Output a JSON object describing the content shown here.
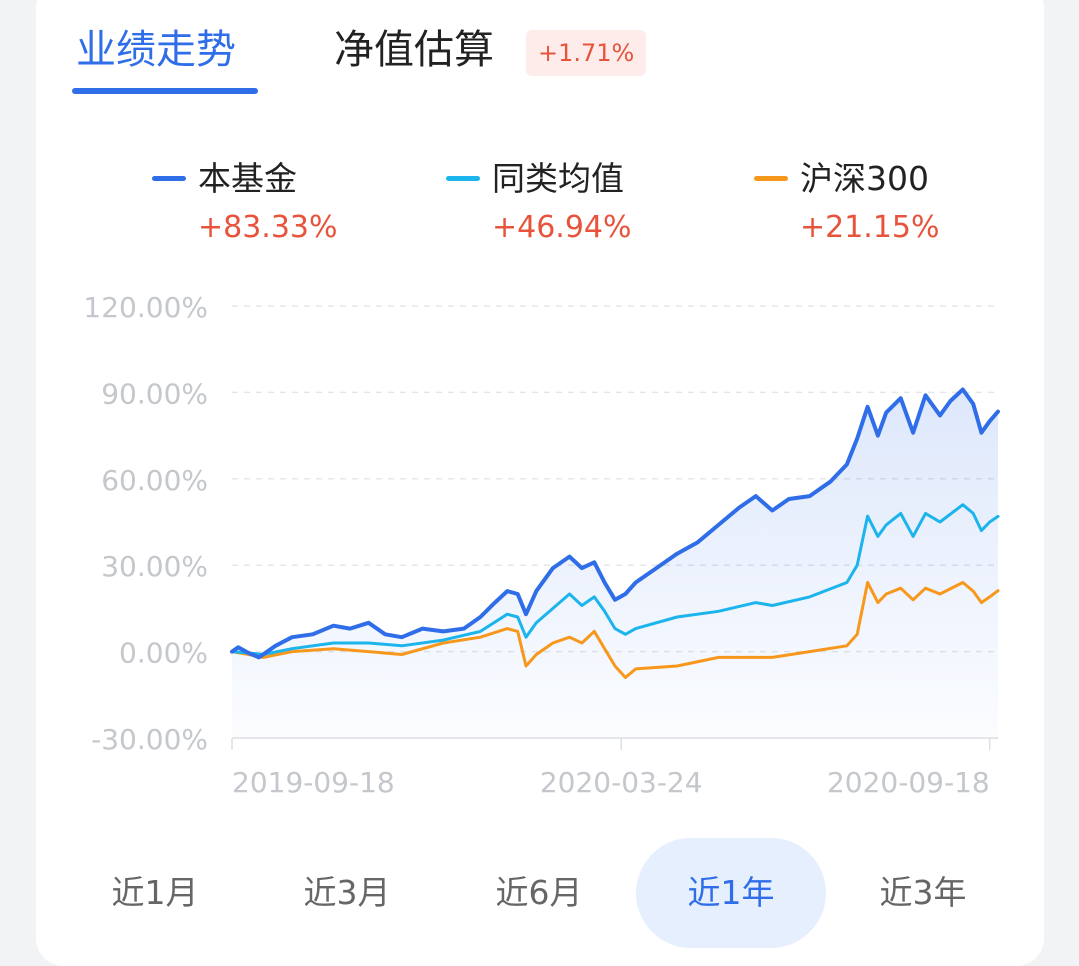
{
  "tabs": [
    {
      "label": "业绩走势",
      "active": true
    },
    {
      "label": "净值估算",
      "active": false,
      "badge": "+1.71%"
    }
  ],
  "colors": {
    "fund": "#2f6ee8",
    "peer": "#1cb4ec",
    "index": "#f7981c",
    "positive": "#e8533c",
    "accent": "#2f6ee8"
  },
  "range_buttons": [
    {
      "label": "近1月",
      "active": false
    },
    {
      "label": "近3月",
      "active": false
    },
    {
      "label": "近6月",
      "active": false
    },
    {
      "label": "近1年",
      "active": true
    },
    {
      "label": "近3年",
      "active": false
    }
  ],
  "chart_data": {
    "type": "line",
    "y_unit": "%",
    "ylim": [
      -30,
      120
    ],
    "y_ticks": [
      120,
      90,
      60,
      30,
      0,
      -30
    ],
    "y_tick_labels": [
      "120.00%",
      "90.00%",
      "60.00%",
      "30.00%",
      "0.00%",
      "-30.00%"
    ],
    "x_ticks": [
      {
        "date": "2019-09-18",
        "label": "2019-09-18"
      },
      {
        "date": "2020-03-24",
        "label": "2020-03-24"
      },
      {
        "date": "2020-09-18",
        "label": "2020-09-18"
      }
    ],
    "grid": true,
    "legend": "top",
    "series": [
      {
        "name": "本基金",
        "value_label": "+83.33%",
        "color": "#2f6ee8",
        "fill_area": true,
        "points": [
          [
            "2019-09-18",
            0
          ],
          [
            "2019-09-21",
            1.5
          ],
          [
            "2019-09-26",
            -0.5
          ],
          [
            "2019-10-01",
            -2
          ],
          [
            "2019-10-09",
            2
          ],
          [
            "2019-10-17",
            5
          ],
          [
            "2019-10-27",
            6
          ],
          [
            "2019-11-06",
            9
          ],
          [
            "2019-11-14",
            8
          ],
          [
            "2019-11-23",
            10
          ],
          [
            "2019-12-01",
            6
          ],
          [
            "2019-12-09",
            5
          ],
          [
            "2019-12-19",
            8
          ],
          [
            "2019-12-29",
            7
          ],
          [
            "2020-01-08",
            8
          ],
          [
            "2020-01-16",
            12
          ],
          [
            "2020-01-23",
            17
          ],
          [
            "2020-01-29",
            21
          ],
          [
            "2020-02-03",
            20
          ],
          [
            "2020-02-07",
            13
          ],
          [
            "2020-02-12",
            21
          ],
          [
            "2020-02-20",
            29
          ],
          [
            "2020-02-28",
            33
          ],
          [
            "2020-03-05",
            29
          ],
          [
            "2020-03-11",
            31
          ],
          [
            "2020-03-16",
            24
          ],
          [
            "2020-03-21",
            18
          ],
          [
            "2020-03-26",
            20
          ],
          [
            "2020-03-31",
            24
          ],
          [
            "2020-04-10",
            29
          ],
          [
            "2020-04-20",
            34
          ],
          [
            "2020-04-30",
            38
          ],
          [
            "2020-05-10",
            44
          ],
          [
            "2020-05-20",
            50
          ],
          [
            "2020-05-28",
            54
          ],
          [
            "2020-06-05",
            49
          ],
          [
            "2020-06-13",
            53
          ],
          [
            "2020-06-23",
            54
          ],
          [
            "2020-07-03",
            59
          ],
          [
            "2020-07-11",
            65
          ],
          [
            "2020-07-16",
            74
          ],
          [
            "2020-07-21",
            85
          ],
          [
            "2020-07-26",
            75
          ],
          [
            "2020-07-30",
            83
          ],
          [
            "2020-08-06",
            88
          ],
          [
            "2020-08-12",
            76
          ],
          [
            "2020-08-18",
            89
          ],
          [
            "2020-08-25",
            82
          ],
          [
            "2020-08-30",
            87
          ],
          [
            "2020-09-05",
            91
          ],
          [
            "2020-09-10",
            86
          ],
          [
            "2020-09-14",
            76
          ],
          [
            "2020-09-18",
            80
          ],
          [
            "2020-09-22",
            83.33
          ]
        ]
      },
      {
        "name": "同类均值",
        "value_label": "+46.94%",
        "color": "#1cb4ec",
        "fill_area": false,
        "points": [
          [
            "2019-09-18",
            0
          ],
          [
            "2019-09-26",
            -0.5
          ],
          [
            "2019-10-03",
            -1
          ],
          [
            "2019-10-17",
            1
          ],
          [
            "2019-11-06",
            3
          ],
          [
            "2019-11-23",
            3
          ],
          [
            "2019-12-09",
            2
          ],
          [
            "2019-12-29",
            4
          ],
          [
            "2020-01-16",
            7
          ],
          [
            "2020-01-29",
            13
          ],
          [
            "2020-02-03",
            12
          ],
          [
            "2020-02-07",
            5
          ],
          [
            "2020-02-12",
            10
          ],
          [
            "2020-02-20",
            15
          ],
          [
            "2020-02-28",
            20
          ],
          [
            "2020-03-05",
            16
          ],
          [
            "2020-03-11",
            19
          ],
          [
            "2020-03-16",
            14
          ],
          [
            "2020-03-21",
            8
          ],
          [
            "2020-03-26",
            6
          ],
          [
            "2020-03-31",
            8
          ],
          [
            "2020-04-20",
            12
          ],
          [
            "2020-05-10",
            14
          ],
          [
            "2020-05-28",
            17
          ],
          [
            "2020-06-05",
            16
          ],
          [
            "2020-06-23",
            19
          ],
          [
            "2020-07-11",
            24
          ],
          [
            "2020-07-16",
            30
          ],
          [
            "2020-07-21",
            47
          ],
          [
            "2020-07-26",
            40
          ],
          [
            "2020-07-30",
            44
          ],
          [
            "2020-08-06",
            48
          ],
          [
            "2020-08-12",
            40
          ],
          [
            "2020-08-18",
            48
          ],
          [
            "2020-08-25",
            45
          ],
          [
            "2020-09-05",
            51
          ],
          [
            "2020-09-10",
            48
          ],
          [
            "2020-09-14",
            42
          ],
          [
            "2020-09-18",
            45
          ],
          [
            "2020-09-22",
            46.94
          ]
        ]
      },
      {
        "name": "沪深300",
        "value_label": "+21.15%",
        "color": "#f7981c",
        "fill_area": false,
        "points": [
          [
            "2019-09-18",
            0
          ],
          [
            "2019-09-26",
            -1
          ],
          [
            "2019-10-03",
            -2
          ],
          [
            "2019-10-17",
            0
          ],
          [
            "2019-11-06",
            1
          ],
          [
            "2019-11-23",
            0
          ],
          [
            "2019-12-09",
            -1
          ],
          [
            "2019-12-29",
            3
          ],
          [
            "2020-01-16",
            5
          ],
          [
            "2020-01-29",
            8
          ],
          [
            "2020-02-03",
            7
          ],
          [
            "2020-02-07",
            -5
          ],
          [
            "2020-02-12",
            -1
          ],
          [
            "2020-02-20",
            3
          ],
          [
            "2020-02-28",
            5
          ],
          [
            "2020-03-05",
            3
          ],
          [
            "2020-03-11",
            7
          ],
          [
            "2020-03-16",
            1
          ],
          [
            "2020-03-21",
            -5
          ],
          [
            "2020-03-26",
            -9
          ],
          [
            "2020-03-31",
            -6
          ],
          [
            "2020-04-20",
            -5
          ],
          [
            "2020-05-10",
            -2
          ],
          [
            "2020-05-28",
            -2
          ],
          [
            "2020-06-05",
            -2
          ],
          [
            "2020-06-23",
            0
          ],
          [
            "2020-07-11",
            2
          ],
          [
            "2020-07-16",
            6
          ],
          [
            "2020-07-21",
            24
          ],
          [
            "2020-07-26",
            17
          ],
          [
            "2020-07-30",
            20
          ],
          [
            "2020-08-06",
            22
          ],
          [
            "2020-08-12",
            18
          ],
          [
            "2020-08-18",
            22
          ],
          [
            "2020-08-25",
            20
          ],
          [
            "2020-09-05",
            24
          ],
          [
            "2020-09-10",
            21
          ],
          [
            "2020-09-14",
            17
          ],
          [
            "2020-09-18",
            19
          ],
          [
            "2020-09-22",
            21.15
          ]
        ]
      }
    ]
  }
}
